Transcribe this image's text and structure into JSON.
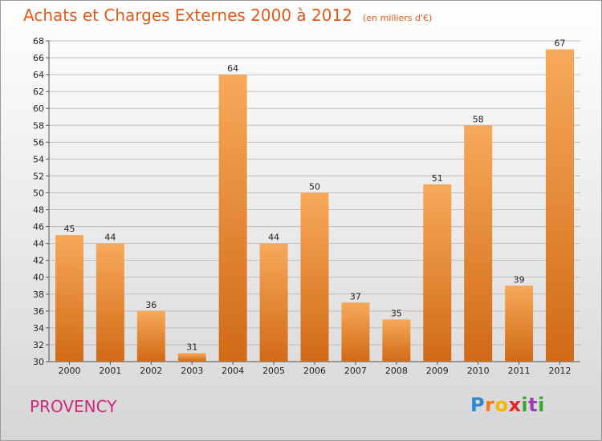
{
  "header": {
    "title": "Achats et Charges Externes 2000 à 2012",
    "unit": "(en milliers d'€)"
  },
  "commune": "PROVENCY",
  "logo": {
    "text": "Proxiti"
  },
  "colors": {
    "title": "#e05a1c",
    "commune": "#d2257b",
    "bar_top": "#f7a95a",
    "bar_bottom": "#d06a16",
    "grid": "#bdbdbd"
  },
  "chart_data": {
    "type": "bar",
    "title": "Achats et Charges Externes 2000 à 2012",
    "subtitle": "(en milliers d'€)",
    "xlabel": "",
    "ylabel": "",
    "categories": [
      "2000",
      "2001",
      "2002",
      "2003",
      "2004",
      "2005",
      "2006",
      "2007",
      "2008",
      "2009",
      "2010",
      "2011",
      "2012"
    ],
    "values": [
      45,
      44,
      36,
      31,
      64,
      44,
      50,
      37,
      35,
      51,
      58,
      39,
      67
    ],
    "ylim": [
      30,
      68
    ],
    "yticks": [
      30,
      32,
      34,
      36,
      38,
      40,
      42,
      44,
      46,
      48,
      50,
      52,
      54,
      56,
      58,
      60,
      62,
      64,
      66,
      68
    ],
    "grid": true,
    "data_labels": true
  }
}
